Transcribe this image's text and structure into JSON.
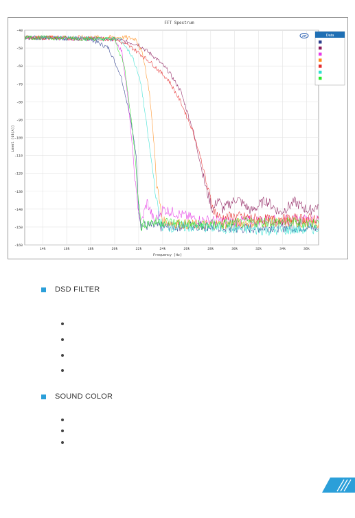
{
  "sections": [
    {
      "heading": "DSD FILTER",
      "bullets": 4
    },
    {
      "heading": "SOUND COLOR",
      "bullets": 3
    }
  ],
  "accent_color": "#2b9fd9",
  "chart_data": {
    "type": "line",
    "title": "FFT Spectrum",
    "xlabel": "Frequency (Hz)",
    "ylabel": "Level (dB(A))",
    "legend_title": "Data",
    "legend_placement": "top-right",
    "ylim": [
      -160,
      -40
    ],
    "xlim": [
      12500,
      37000
    ],
    "grid": true,
    "x_ticks": [
      14000,
      16000,
      18000,
      20000,
      22000,
      24000,
      26000,
      28000,
      30000,
      32000,
      34000,
      36000
    ],
    "x_tick_labels": [
      "14k",
      "16k",
      "18k",
      "20k",
      "22k",
      "24k",
      "26k",
      "28k",
      "30k",
      "32k",
      "34k",
      "36k"
    ],
    "y_ticks": [
      -40,
      -50,
      -60,
      -70,
      -80,
      -90,
      -100,
      -110,
      -120,
      -130,
      -140,
      -150,
      -160
    ],
    "y_tick_labels": [
      "-40",
      "-50",
      "-60",
      "-70",
      "-80",
      "-90",
      "-100",
      "-110",
      "-120",
      "-130",
      "-140",
      "-150",
      "-160"
    ],
    "series": [
      {
        "color": "#2a3c8c",
        "x": [
          12500,
          18000,
          19500,
          20500,
          21200,
          21800,
          22000,
          22200,
          24000,
          27000,
          30000,
          33000,
          36000,
          37000
        ],
        "y": [
          -44,
          -45,
          -50,
          -65,
          -85,
          -110,
          -140,
          -149,
          -150,
          -149,
          -151,
          -150,
          -150,
          -151
        ]
      },
      {
        "color": "#8b1a5a",
        "x": [
          12500,
          20000,
          22000,
          23500,
          24500,
          25500,
          26500,
          27000,
          27600,
          28200,
          28600,
          29000,
          30200,
          31400,
          32600,
          33800,
          35000,
          36200,
          37000
        ],
        "y": [
          -44,
          -45,
          -48,
          -56,
          -63,
          -74,
          -95,
          -110,
          -128,
          -141,
          -134,
          -140,
          -134,
          -141,
          -135,
          -142,
          -136,
          -141,
          -138
        ]
      },
      {
        "color": "#e63ae6",
        "x": [
          12500,
          20000,
          20600,
          21000,
          21400,
          21800,
          22200,
          22700,
          23300,
          24000,
          27000,
          30000,
          33000,
          37000
        ],
        "y": [
          -44,
          -45,
          -52,
          -72,
          -100,
          -132,
          -148,
          -136,
          -147,
          -140,
          -146,
          -147,
          -146,
          -146
        ]
      },
      {
        "color": "#ff8c1a",
        "x": [
          12500,
          20800,
          21800,
          22400,
          22900,
          23300,
          23500,
          24000,
          27000,
          30000,
          33000,
          37000
        ],
        "y": [
          -44,
          -44,
          -45,
          -55,
          -75,
          -105,
          -126,
          -147,
          -149,
          -148,
          -147,
          -148
        ]
      },
      {
        "color": "#e52b2b",
        "x": [
          12500,
          20000,
          21500,
          23000,
          24500,
          25500,
          26500,
          27200,
          27800,
          28300,
          28800,
          30000,
          33000,
          37000
        ],
        "y": [
          -44,
          -45,
          -50,
          -58,
          -68,
          -80,
          -96,
          -112,
          -130,
          -141,
          -145,
          -144,
          -146,
          -145
        ]
      },
      {
        "color": "#2ee0d0",
        "x": [
          12500,
          20500,
          21500,
          22200,
          22800,
          23300,
          23700,
          24000,
          27000,
          30000,
          33000,
          37000
        ],
        "y": [
          -44,
          -45,
          -55,
          -70,
          -100,
          -125,
          -145,
          -150,
          -150,
          -151,
          -152,
          -151
        ]
      },
      {
        "color": "#29e829",
        "x": [
          12500,
          20000,
          20800,
          21300,
          21700,
          22000,
          22200,
          22500,
          24000,
          27000,
          30000,
          33000,
          37000
        ],
        "y": [
          -44,
          -45,
          -60,
          -85,
          -110,
          -135,
          -150,
          -148,
          -147,
          -149,
          -148,
          -147,
          -148
        ]
      }
    ]
  }
}
